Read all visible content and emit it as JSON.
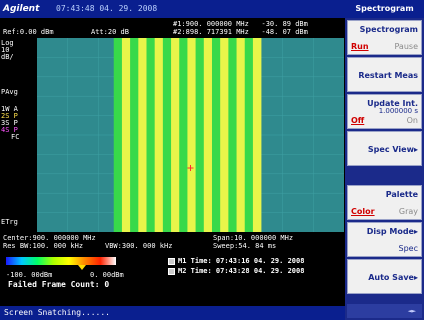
{
  "topbar": {
    "brand": "Agilent",
    "datetime": "07:43:48  04. 29. 2008"
  },
  "header": {
    "ref": "Ref:0.00 dBm",
    "att": "Att:20 dB",
    "marker1": "#1:900. 000000 MHz   -30. 89 dBm",
    "marker2": "#2:898. 717391 MHz   -48. 07 dBm"
  },
  "left_panel": {
    "log": "Log",
    "scale": "10",
    "unit": "dB/",
    "pavg": "PAvg",
    "w1": "1W A",
    "s2": "2S P",
    "s3": "3S P",
    "s4": "4S P",
    "fc": "FC",
    "etrg": "ETrg"
  },
  "footer": {
    "center": "Center:900. 000000 MHz",
    "span": "Span:10. 000000 MHz",
    "rbw": "Res BW:100. 000 kHz",
    "vbw": "VBW:300. 000 kHz",
    "sweep": "Sweep:54. 84 ms"
  },
  "colorbar": {
    "min": "-100. 00dBm",
    "max": "0. 00dBm",
    "failed": "Failed Frame Count: 0"
  },
  "marker_times": {
    "m1": "M1 Time: 07:43:16 04. 29. 2008",
    "m2": "M2 Time: 07:43:28 04. 29. 2008"
  },
  "softkeys": {
    "title": "Spectrogram",
    "items": [
      {
        "main": "Spectrogram",
        "left": "Run",
        "right": "Pause"
      },
      {
        "main": "Restart Meas"
      },
      {
        "main": "Update Int.",
        "value": "1.000000 s",
        "left": "Off",
        "right": "On"
      },
      {
        "main": "Spec View▸"
      },
      {
        "main": "Palette",
        "left": "Color",
        "right": "Gray"
      },
      {
        "main": "Disp Mode▸",
        "value": "Spec"
      },
      {
        "main": "Auto Save▸"
      }
    ],
    "bottom": "◄►"
  },
  "statusbar": {
    "text": "Screen Snatching......"
  },
  "colors": {
    "background_floor": "#2f8a8e",
    "band_green": "#38d94a",
    "band_yellow": "#e8f54a"
  },
  "spectrogram": {
    "band_start_fraction": 0.25,
    "band_end_fraction": 0.73,
    "stripe_count": 18,
    "cursor_fraction_x": 0.5,
    "cursor_fraction_y": 0.67
  }
}
